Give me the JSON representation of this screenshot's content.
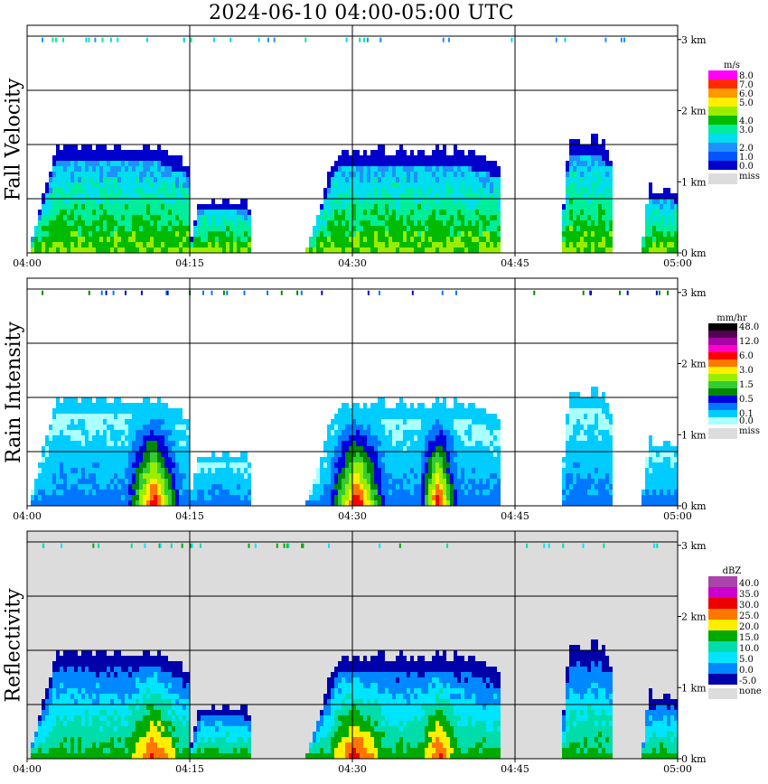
{
  "title": "2024-06-10   04:00-05:00 UTC",
  "colors": {
    "miss": "#dcdcdc",
    "grid": "#000000"
  },
  "panels": [
    {
      "id": "fall-velocity",
      "ylabel": "Fall Velocity",
      "background": "#ffffff",
      "legend": {
        "unit": "m/s",
        "entries": [
          {
            "label": "8.0",
            "color": "#ff00ff"
          },
          {
            "label": "7.0",
            "color": "#ff2a00"
          },
          {
            "label": "6.0",
            "color": "#ff9900"
          },
          {
            "label": "5.0",
            "color": "#ffee00"
          },
          {
            "label": "",
            "color": "#99ee00"
          },
          {
            "label": "4.0",
            "color": "#00bb00"
          },
          {
            "label": "3.0",
            "color": "#00ee99"
          },
          {
            "label": "",
            "color": "#00ddee"
          },
          {
            "label": "2.0",
            "color": "#1e90ff"
          },
          {
            "label": "1.0",
            "color": "#0055ff"
          },
          {
            "label": "0.0",
            "color": "#0000cc"
          }
        ],
        "miss_label": "miss"
      }
    },
    {
      "id": "rain-intensity",
      "ylabel": "Rain Intensity",
      "background": "#ffffff",
      "legend": {
        "unit": "mm/hr",
        "entries": [
          {
            "label": "48.0",
            "color": "#000000"
          },
          {
            "label": "",
            "color": "#550055"
          },
          {
            "label": "12.0",
            "color": "#aa00aa"
          },
          {
            "label": "",
            "color": "#ff00cc"
          },
          {
            "label": "6.0",
            "color": "#ff0000"
          },
          {
            "label": "",
            "color": "#ff7700"
          },
          {
            "label": "3.0",
            "color": "#ffee00"
          },
          {
            "label": "",
            "color": "#99ee00"
          },
          {
            "label": "1.5",
            "color": "#33cc33"
          },
          {
            "label": "",
            "color": "#008800"
          },
          {
            "label": "0.5",
            "color": "#0000dd"
          },
          {
            "label": "",
            "color": "#0077ff"
          },
          {
            "label": "0.1",
            "color": "#00ccff"
          },
          {
            "label": "0.0",
            "color": "#aaffff"
          }
        ],
        "miss_label": "miss"
      }
    },
    {
      "id": "reflectivity",
      "ylabel": "Reflectivity",
      "background": "#dcdcdc",
      "legend": {
        "unit": "dBZ",
        "entries": [
          {
            "label": "40.0",
            "color": "#aa44aa"
          },
          {
            "label": "35.0",
            "color": "#cc00cc"
          },
          {
            "label": "30.0",
            "color": "#ee0000"
          },
          {
            "label": "25.0",
            "color": "#ff7700"
          },
          {
            "label": "20.0",
            "color": "#ffee00"
          },
          {
            "label": "15.0",
            "color": "#00aa00"
          },
          {
            "label": "10.0",
            "color": "#00ddaa"
          },
          {
            "label": "5.0",
            "color": "#00e5ff"
          },
          {
            "label": "0.0",
            "color": "#0088ff"
          },
          {
            "label": "-5.0",
            "color": "#0000aa"
          }
        ],
        "miss_label": "none"
      }
    }
  ],
  "chart_data": {
    "type": "heatmap",
    "title": "2024-06-10   04:00-05:00 UTC",
    "x_ticks": [
      "04:00",
      "04:15",
      "04:30",
      "04:45",
      "05:00"
    ],
    "x_range_minutes": [
      0,
      60
    ],
    "y_ticks": [
      "0 km",
      "1 km",
      "2 km",
      "3 km"
    ],
    "y_range_km": [
      0,
      3.2
    ],
    "grid": true,
    "precip_cells": [
      {
        "start_min": 0.0,
        "end_min": 14.8,
        "top_km": 1.45
      },
      {
        "start_min": 14.8,
        "end_min": 20.5,
        "top_km": 0.7
      },
      {
        "start_min": 25.5,
        "end_min": 43.5,
        "top_km": 1.4
      },
      {
        "start_min": 49.0,
        "end_min": 53.8,
        "top_km": 1.55
      },
      {
        "start_min": 56.5,
        "end_min": 60.0,
        "top_km": 0.85
      }
    ],
    "rain_core_min": [
      [
        9.0,
        14.0
      ],
      [
        27.5,
        33.0
      ],
      [
        36.0,
        39.5
      ]
    ]
  }
}
